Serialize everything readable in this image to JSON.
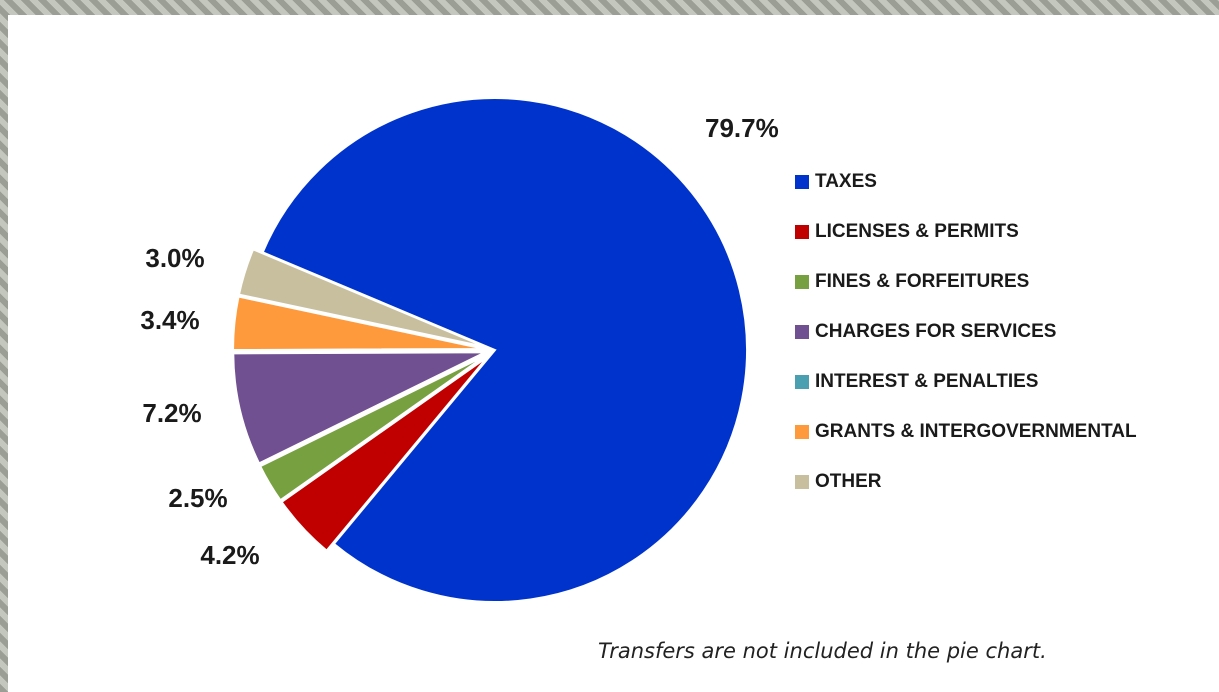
{
  "chart_data": {
    "type": "pie",
    "categories": [
      "TAXES",
      "LICENSES & PERMITS",
      "FINES & FORFEITURES",
      "CHARGES FOR SERVICES",
      "INTEREST & PENALTIES",
      "GRANTS & INTERGOVERNMENTAL",
      "OTHER"
    ],
    "values": [
      79.7,
      4.2,
      2.5,
      7.2,
      0,
      3.4,
      3.0
    ],
    "value_labels": [
      "79.7%",
      "4.2%",
      "2.5%",
      "7.2%",
      null,
      "3.4%",
      "3.0%"
    ],
    "colors": [
      "#0033cc",
      "#c00000",
      "#77a040",
      "#705090",
      "#4aa0b0",
      "#ff9a3c",
      "#c8bf9e"
    ],
    "note": "Transfers are not included in the pie chart."
  }
}
